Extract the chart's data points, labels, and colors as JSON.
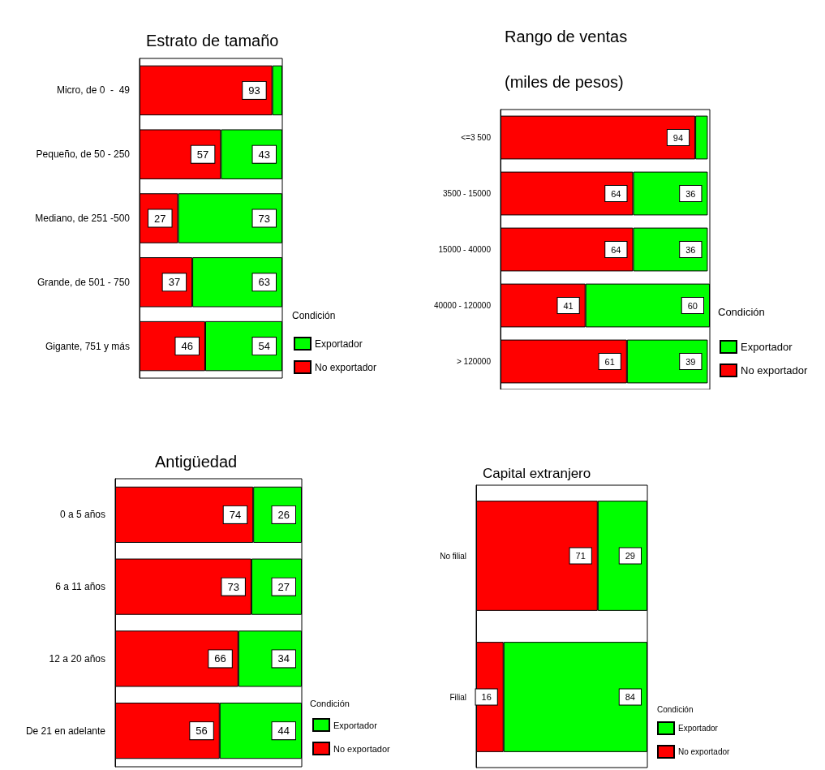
{
  "chart_data": [
    {
      "type": "bar",
      "orientation": "horizontal",
      "stacked": true,
      "title": "Estrato de tamaño",
      "legend_title": "Condición",
      "legend": "right",
      "tick_labels": "y",
      "categories": [
        "Micro, de 0  -  49",
        "Pequeño, de 50 - 250",
        "Mediano, de 251 -500",
        "Grande, de 501 - 750",
        "Gigante, 751 y más"
      ],
      "series": [
        {
          "name": "No exportador",
          "color": "#ff0000",
          "values": [
            93,
            57,
            27,
            37,
            46
          ],
          "value_labels": [
            "93",
            "57",
            "27",
            "37",
            "46"
          ]
        },
        {
          "name": "Exportador",
          "color": "#00ff00",
          "values": [
            7,
            43,
            73,
            63,
            54
          ],
          "value_labels": [
            null,
            "43",
            "73",
            "63",
            "54"
          ]
        }
      ]
    },
    {
      "type": "bar",
      "orientation": "horizontal",
      "stacked": true,
      "title": "Rango de ventas\n(miles de pesos)",
      "legend_title": "Condición",
      "legend": "right",
      "tick_labels": "y",
      "categories": [
        "<=3 500",
        "3500 - 15000",
        "15000 - 40000",
        "40000 - 120000",
        "> 120000"
      ],
      "series": [
        {
          "name": "No exportador",
          "color": "#ff0000",
          "values": [
            94,
            64,
            64,
            41,
            61
          ],
          "value_labels": [
            "94",
            "64",
            "64",
            "41",
            "61"
          ]
        },
        {
          "name": "Exportador",
          "color": "#00ff00",
          "values": [
            6,
            36,
            36,
            60,
            39
          ],
          "value_labels": [
            null,
            "36",
            "36",
            "60",
            "39"
          ]
        }
      ]
    },
    {
      "type": "bar",
      "orientation": "horizontal",
      "stacked": true,
      "title": "Antigüedad",
      "legend_title": "Condición",
      "legend": "right",
      "tick_labels": "y",
      "categories": [
        "0 a 5 años",
        "6 a 11 años",
        "12 a 20 años",
        "De 21 en adelante"
      ],
      "series": [
        {
          "name": "No exportador",
          "color": "#ff0000",
          "values": [
            74,
            73,
            66,
            56
          ],
          "value_labels": [
            "74",
            "73",
            "66",
            "56"
          ]
        },
        {
          "name": "Exportador",
          "color": "#00ff00",
          "values": [
            26,
            27,
            34,
            44
          ],
          "value_labels": [
            "26",
            "27",
            "34",
            "44"
          ]
        }
      ]
    },
    {
      "type": "bar",
      "orientation": "horizontal",
      "stacked": true,
      "title": "Capital extranjero",
      "legend_title": "Condición",
      "legend": "right",
      "tick_labels": "y",
      "categories": [
        "No filial",
        "Filial"
      ],
      "series": [
        {
          "name": "No exportador",
          "color": "#ff0000",
          "values": [
            71,
            16
          ],
          "value_labels": [
            "71",
            "16"
          ]
        },
        {
          "name": "Exportador",
          "color": "#00ff00",
          "values": [
            29,
            84
          ],
          "value_labels": [
            "29",
            "84"
          ]
        }
      ]
    }
  ]
}
